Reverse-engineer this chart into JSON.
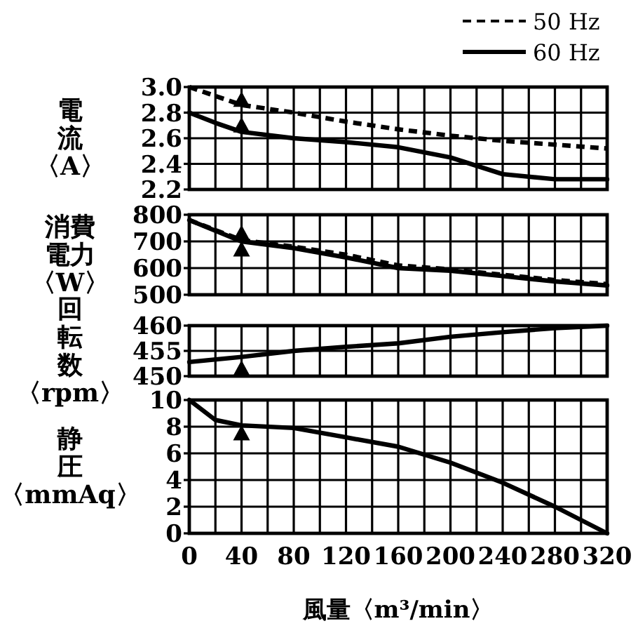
{
  "chart_data": [
    {
      "type": "line",
      "ylabel": "電流〈A〉",
      "x": [
        0,
        20,
        40,
        80,
        120,
        160,
        200,
        240,
        280,
        320
      ],
      "xlim": [
        0,
        320
      ],
      "xticks": [
        0,
        {
          "value": 20,
          "label": null
        },
        40,
        {
          "value": 60,
          "label": null
        },
        80,
        {
          "value": 100,
          "label": null
        },
        120,
        {
          "value": 140,
          "label": null
        },
        160,
        {
          "value": 180,
          "label": null
        },
        200,
        {
          "value": 220,
          "label": null
        },
        240,
        {
          "value": 260,
          "label": null
        },
        280,
        {
          "value": 300,
          "label": null
        },
        320
      ],
      "ylim": [
        2.2,
        3.0
      ],
      "yticks": [
        {
          "value": 2.2,
          "label": "2.2"
        },
        {
          "value": 2.4,
          "label": "2.4"
        },
        {
          "value": 2.6,
          "label": "2.6"
        },
        {
          "value": 2.8,
          "label": "2.8"
        },
        {
          "value": 3.0,
          "label": "3.0"
        }
      ],
      "grid": true,
      "tick_labels": "y",
      "legend": "top right",
      "series": [
        {
          "name": "50 Hz",
          "color": "#000000",
          "line_style": "dashed",
          "values": [
            3.0,
            2.93,
            2.86,
            2.8,
            2.73,
            2.67,
            2.62,
            2.58,
            2.55,
            2.52
          ]
        },
        {
          "name": "60 Hz",
          "color": "#000000",
          "line_style": "solid",
          "values": [
            2.8,
            2.72,
            2.65,
            2.6,
            2.57,
            2.53,
            2.45,
            2.32,
            2.28,
            2.28
          ]
        },
        {
          "type": "scatter",
          "color": "#000000",
          "marker": "triangle",
          "values": [
            null,
            null,
            2.9,
            null,
            null,
            null,
            null,
            null,
            null,
            null
          ]
        },
        {
          "type": "scatter",
          "color": "#000000",
          "marker": "triangle",
          "values": [
            null,
            null,
            2.7,
            null,
            null,
            null,
            null,
            null,
            null,
            null
          ]
        }
      ]
    },
    {
      "type": "line",
      "ylabel": "消費電力〈W〉",
      "x": [
        0,
        40,
        80,
        120,
        160,
        200,
        240,
        280,
        320
      ],
      "xlim": [
        0,
        320
      ],
      "xticks": [
        0,
        {
          "value": 20,
          "label": null
        },
        40,
        {
          "value": 60,
          "label": null
        },
        80,
        {
          "value": 100,
          "label": null
        },
        120,
        {
          "value": 140,
          "label": null
        },
        160,
        {
          "value": 180,
          "label": null
        },
        200,
        {
          "value": 220,
          "label": null
        },
        240,
        {
          "value": 260,
          "label": null
        },
        280,
        {
          "value": 300,
          "label": null
        },
        320
      ],
      "ylim": [
        500,
        800
      ],
      "yticks": [
        500,
        600,
        700,
        800
      ],
      "grid": true,
      "tick_labels": "y",
      "series": [
        {
          "color": "#000000",
          "line_style": "dashed",
          "values": [
            780,
            705,
            680,
            650,
            610,
            595,
            575,
            555,
            540
          ]
        },
        {
          "color": "#000000",
          "line_style": "solid",
          "values": [
            780,
            700,
            675,
            640,
            600,
            590,
            570,
            550,
            535
          ]
        },
        {
          "type": "scatter",
          "color": "#000000",
          "marker": "triangle",
          "values": [
            null,
            730,
            null,
            null,
            null,
            null,
            null,
            null,
            null
          ]
        },
        {
          "type": "scatter",
          "color": "#000000",
          "marker": "triangle",
          "values": [
            null,
            670,
            null,
            null,
            null,
            null,
            null,
            null,
            null
          ]
        }
      ]
    },
    {
      "type": "line",
      "ylabel": "回転数〈rpm〉",
      "x": [
        0,
        40,
        80,
        120,
        160,
        200,
        240,
        280,
        320
      ],
      "xlim": [
        0,
        320
      ],
      "xticks": [
        0,
        {
          "value": 20,
          "label": null
        },
        40,
        {
          "value": 60,
          "label": null
        },
        80,
        {
          "value": 100,
          "label": null
        },
        120,
        {
          "value": 140,
          "label": null
        },
        160,
        {
          "value": 180,
          "label": null
        },
        200,
        {
          "value": 220,
          "label": null
        },
        240,
        {
          "value": 260,
          "label": null
        },
        280,
        {
          "value": 300,
          "label": null
        },
        320
      ],
      "ylim": [
        450,
        460
      ],
      "yticks": [
        450,
        455,
        460
      ],
      "grid": true,
      "tick_labels": "y",
      "series": [
        {
          "color": "#000000",
          "line_style": "solid",
          "values": [
            452.8,
            453.8,
            455,
            455.8,
            456.5,
            457.8,
            458.7,
            459.5,
            460
          ]
        },
        {
          "type": "scatter",
          "color": "#000000",
          "marker": "triangle",
          "values": [
            null,
            451.5,
            null,
            null,
            null,
            null,
            null,
            null,
            null
          ]
        }
      ]
    },
    {
      "type": "line",
      "ylabel": "静圧〈mmAq〉",
      "xlabel": "風量〈m³/min〉",
      "x": [
        0,
        20,
        40,
        80,
        120,
        160,
        200,
        240,
        280,
        320
      ],
      "xlim": [
        0,
        320
      ],
      "xticks": [
        0,
        {
          "value": 20,
          "label": null
        },
        40,
        {
          "value": 60,
          "label": null
        },
        80,
        {
          "value": 100,
          "label": null
        },
        120,
        {
          "value": 140,
          "label": null
        },
        160,
        {
          "value": 180,
          "label": null
        },
        200,
        {
          "value": 220,
          "label": null
        },
        240,
        {
          "value": 260,
          "label": null
        },
        280,
        {
          "value": 300,
          "label": null
        },
        320
      ],
      "ylim": [
        0,
        10
      ],
      "yticks": [
        0,
        2,
        4,
        6,
        8,
        10
      ],
      "grid": true,
      "series": [
        {
          "color": "#000000",
          "line_style": "solid",
          "values": [
            10,
            8.5,
            8.1,
            7.9,
            7.2,
            6.5,
            5.3,
            3.8,
            2.0,
            0
          ]
        },
        {
          "type": "scatter",
          "color": "#000000",
          "marker": "triangle",
          "values": [
            null,
            null,
            7.5,
            null,
            null,
            null,
            null,
            null,
            null,
            null
          ]
        }
      ]
    }
  ]
}
